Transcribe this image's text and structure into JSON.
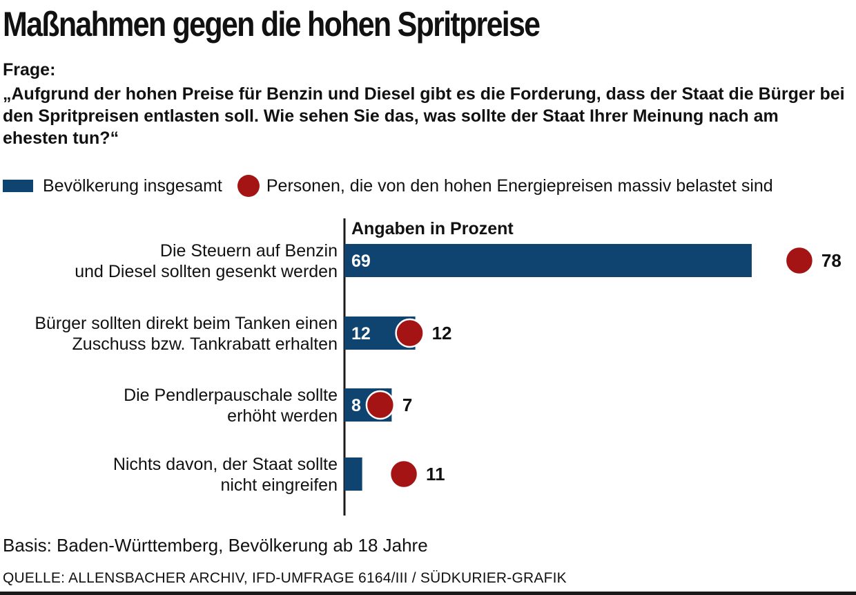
{
  "title": "Maßnahmen gegen die hohen Spritpreise",
  "question_label": "Frage:",
  "question": "„Aufgrund der hohen Preise für Benzin und Diesel gibt es die Forderung, dass der Staat die Bürger bei den Spritpreisen entlasten soll. Wie sehen Sie das, was sollte der Staat Ihrer Meinung nach am ehesten tun?“",
  "legend": {
    "series1": "Bevölkerung insgesamt",
    "series2": "Personen, die von den hohen Energiepreisen massiv belastet sind"
  },
  "colors": {
    "bar": "#0f4471",
    "dot": "#a51414"
  },
  "chart_data": {
    "type": "bar",
    "orientation": "horizontal",
    "axis_title": "Angaben in Prozent",
    "categories": [
      [
        "Die Steuern auf Benzin",
        "und Diesel sollten gesenkt werden"
      ],
      [
        "Bürger sollten direkt beim Tanken einen",
        "Zuschuss bzw. Tankrabatt erhalten"
      ],
      [
        "Die Pendlerpauschale sollte",
        "erhöht werden"
      ],
      [
        "Nichts davon, der Staat sollte",
        "nicht eingreifen"
      ]
    ],
    "series": [
      {
        "name": "Bevölkerung insgesamt",
        "mark": "bar",
        "values": [
          69,
          12,
          8,
          3
        ]
      },
      {
        "name": "Personen, die von den hohen Energiepreisen massiv belastet sind",
        "mark": "dot",
        "values": [
          78,
          12,
          7,
          11
        ]
      }
    ],
    "xlim": [
      0,
      100
    ],
    "grid": false,
    "legend_position": "top"
  },
  "basis": "Basis: Baden-Württemberg, Bevölkerung ab 18 Jahre",
  "source": "QUELLE: ALLENSBACHER ARCHIV, IFD-UMFRAGE 6164/III / SÜDKURIER-GRAFIK"
}
